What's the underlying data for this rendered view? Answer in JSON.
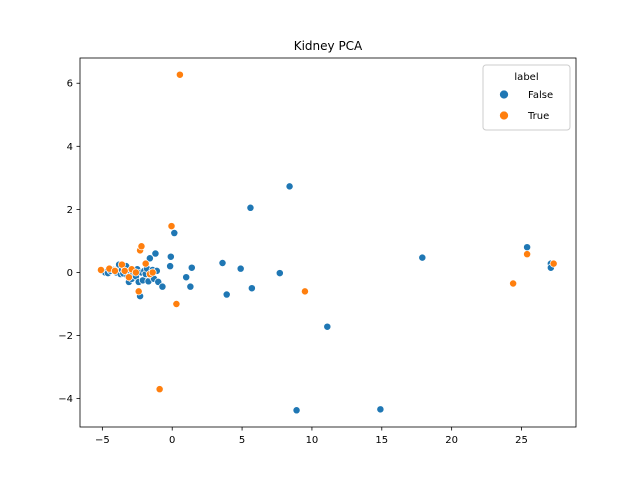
{
  "chart_data": {
    "type": "scatter",
    "title": "Kidney PCA",
    "xlabel": "",
    "ylabel": "",
    "xlim": [
      -6.6,
      28.9
    ],
    "ylim": [
      -4.9,
      6.8
    ],
    "xticks": [
      -5,
      0,
      5,
      10,
      15,
      20,
      25
    ],
    "yticks": [
      -4,
      -2,
      0,
      2,
      4,
      6
    ],
    "grid": false,
    "legend": {
      "title": "label",
      "placement": "top-right"
    },
    "series": [
      {
        "name": "False",
        "color": "#1f77b4",
        "points": [
          [
            -5.0,
            0.05
          ],
          [
            -4.8,
            0.0
          ],
          [
            -4.6,
            -0.02
          ],
          [
            -4.4,
            0.05
          ],
          [
            -4.2,
            0.08
          ],
          [
            -4.0,
            0.0
          ],
          [
            -3.9,
            0.1
          ],
          [
            -3.8,
            0.25
          ],
          [
            -3.7,
            -0.05
          ],
          [
            -3.6,
            0.08
          ],
          [
            -3.5,
            -0.03
          ],
          [
            -3.4,
            0.12
          ],
          [
            -3.3,
            0.2
          ],
          [
            -3.2,
            -0.1
          ],
          [
            -3.1,
            -0.3
          ],
          [
            -3.0,
            0.05
          ],
          [
            -2.9,
            -0.2
          ],
          [
            -2.8,
            0.0
          ],
          [
            -2.7,
            0.05
          ],
          [
            -2.6,
            -0.12
          ],
          [
            -2.5,
            0.1
          ],
          [
            -2.4,
            -0.3
          ],
          [
            -2.3,
            -0.75
          ],
          [
            -2.2,
            0.0
          ],
          [
            -2.1,
            -0.25
          ],
          [
            -2.0,
            0.05
          ],
          [
            -1.9,
            -0.05
          ],
          [
            -1.8,
            0.12
          ],
          [
            -1.7,
            -0.28
          ],
          [
            -1.6,
            0.45
          ],
          [
            -1.5,
            -0.1
          ],
          [
            -1.4,
            0.08
          ],
          [
            -1.3,
            -0.2
          ],
          [
            -1.2,
            0.6
          ],
          [
            -1.1,
            0.05
          ],
          [
            -1.0,
            -0.3
          ],
          [
            -0.7,
            -0.45
          ],
          [
            -0.15,
            0.2
          ],
          [
            -0.1,
            0.5
          ],
          [
            0.15,
            1.25
          ],
          [
            1.0,
            -0.15
          ],
          [
            1.3,
            -0.45
          ],
          [
            1.4,
            0.15
          ],
          [
            3.6,
            0.3
          ],
          [
            3.9,
            -0.7
          ],
          [
            4.9,
            0.12
          ],
          [
            5.6,
            2.05
          ],
          [
            5.7,
            -0.5
          ],
          [
            7.7,
            -0.02
          ],
          [
            8.4,
            2.73
          ],
          [
            8.9,
            -4.37
          ],
          [
            11.1,
            -1.72
          ],
          [
            14.9,
            -4.34
          ],
          [
            17.9,
            0.47
          ],
          [
            25.4,
            0.8
          ],
          [
            27.1,
            0.28
          ],
          [
            27.1,
            0.15
          ]
        ]
      },
      {
        "name": "True",
        "color": "#ff7f0e",
        "points": [
          [
            -5.1,
            0.08
          ],
          [
            -4.5,
            0.12
          ],
          [
            -4.1,
            0.05
          ],
          [
            -3.6,
            0.25
          ],
          [
            -3.4,
            0.05
          ],
          [
            -3.1,
            -0.15
          ],
          [
            -2.9,
            0.1
          ],
          [
            -2.6,
            0.0
          ],
          [
            -2.4,
            -0.6
          ],
          [
            -2.3,
            0.7
          ],
          [
            -2.2,
            0.83
          ],
          [
            -1.9,
            0.28
          ],
          [
            -1.6,
            -0.05
          ],
          [
            -1.4,
            0.0
          ],
          [
            -0.9,
            -3.7
          ],
          [
            -0.05,
            1.47
          ],
          [
            0.3,
            -1.0
          ],
          [
            0.55,
            6.27
          ],
          [
            9.5,
            -0.6
          ],
          [
            24.4,
            -0.35
          ],
          [
            25.4,
            0.58
          ],
          [
            27.3,
            0.28
          ]
        ]
      }
    ]
  }
}
